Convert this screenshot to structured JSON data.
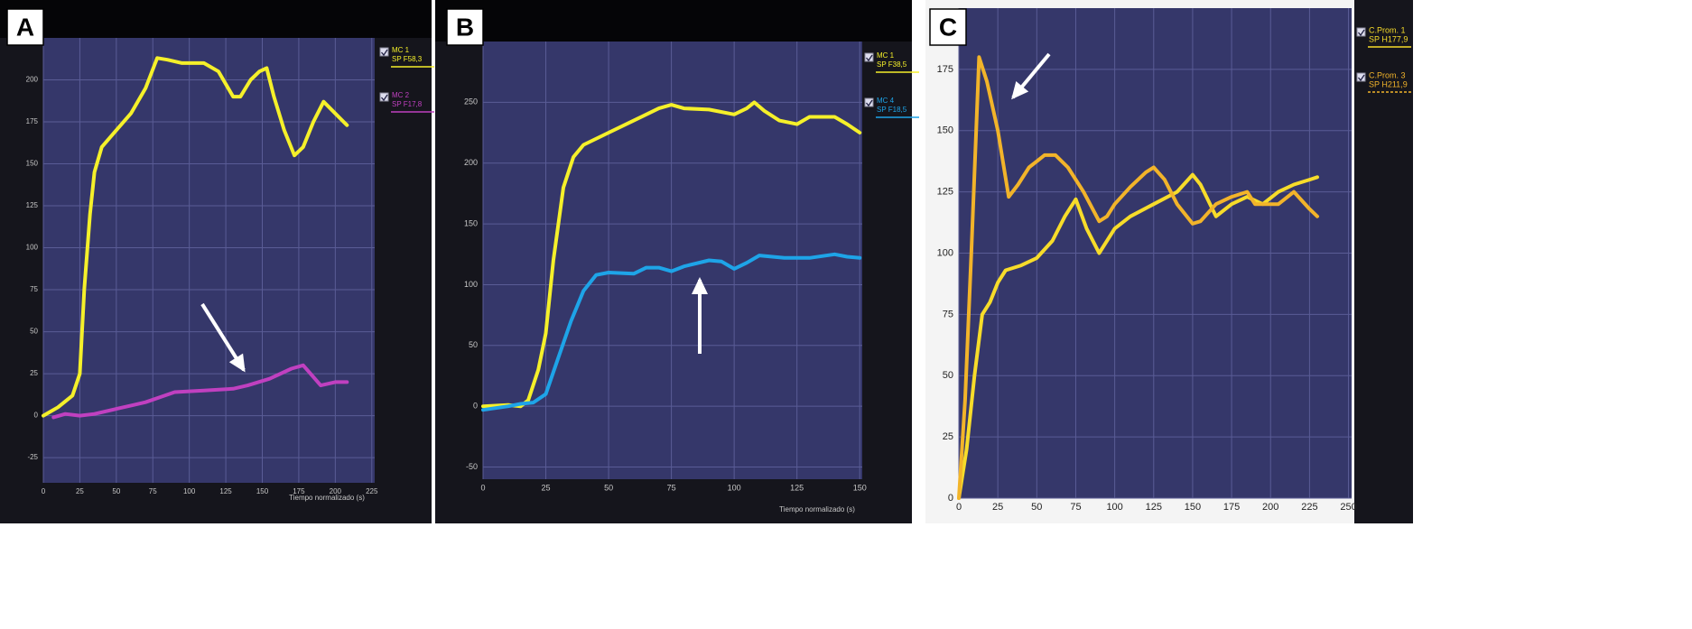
{
  "chart_data": [
    {
      "type": "line",
      "label": "A",
      "x_label": "Tiempo normalizado (s)",
      "xlim": [
        0,
        227
      ],
      "ylim": [
        -40,
        225
      ],
      "xticks": [
        0,
        25,
        50,
        75,
        100,
        125,
        150,
        175,
        200,
        225
      ],
      "yticks": [
        -25,
        0,
        25,
        50,
        75,
        100,
        125,
        150,
        175,
        200
      ],
      "grid": true,
      "series": [
        {
          "name": "MC 1",
          "sp": "SP F58,3",
          "color": "#f5f02a",
          "x": [
            0,
            10,
            20,
            25,
            28,
            32,
            35,
            40,
            50,
            60,
            70,
            78,
            85,
            95,
            110,
            120,
            130,
            135,
            142,
            148,
            153,
            158,
            165,
            172,
            178,
            185,
            192,
            200,
            208
          ],
          "values": [
            0,
            5,
            12,
            25,
            75,
            120,
            145,
            160,
            170,
            180,
            195,
            213,
            212,
            210,
            210,
            205,
            190,
            190,
            200,
            205,
            207,
            190,
            170,
            155,
            160,
            175,
            187,
            180,
            173
          ]
        },
        {
          "name": "MC 2",
          "sp": "SP F17,8",
          "color": "#c040c0",
          "x": [
            7,
            15,
            25,
            35,
            50,
            60,
            70,
            80,
            90,
            110,
            130,
            140,
            155,
            170,
            178,
            183,
            190,
            200,
            208
          ],
          "values": [
            -1,
            1,
            0,
            1,
            4,
            6,
            8,
            11,
            14,
            15,
            16,
            18,
            22,
            28,
            30,
            25,
            18,
            20,
            20
          ]
        }
      ]
    },
    {
      "type": "line",
      "label": "B",
      "x_label": "Tiempo normalizado (s)",
      "xlim": [
        0,
        151
      ],
      "ylim": [
        -60,
        300
      ],
      "xticks": [
        0,
        25,
        50,
        75,
        100,
        125,
        150
      ],
      "yticks": [
        -50,
        0,
        50,
        100,
        150,
        200,
        250
      ],
      "grid": true,
      "series": [
        {
          "name": "MC 1",
          "sp": "SP F38,5",
          "color": "#f5f02a",
          "x": [
            0,
            10,
            15,
            18,
            22,
            25,
            28,
            32,
            36,
            40,
            50,
            60,
            70,
            75,
            80,
            90,
            100,
            105,
            108,
            112,
            118,
            125,
            130,
            140,
            145,
            150
          ],
          "values": [
            0,
            1,
            0,
            5,
            30,
            60,
            120,
            180,
            205,
            215,
            225,
            235,
            245,
            248,
            245,
            244,
            240,
            245,
            250,
            243,
            235,
            232,
            238,
            238,
            232,
            225
          ]
        },
        {
          "name": "MC 4",
          "sp": "SP F18,5",
          "color": "#1ea4e8",
          "x": [
            0,
            10,
            15,
            20,
            25,
            30,
            35,
            40,
            45,
            50,
            60,
            65,
            70,
            75,
            80,
            90,
            95,
            100,
            105,
            110,
            120,
            130,
            140,
            145,
            150
          ],
          "values": [
            -3,
            0,
            2,
            3,
            10,
            40,
            70,
            95,
            108,
            110,
            109,
            114,
            114,
            111,
            115,
            120,
            119,
            113,
            118,
            124,
            122,
            122,
            125,
            123,
            122
          ]
        }
      ]
    },
    {
      "type": "line",
      "label": "C",
      "xlim": [
        0,
        252
      ],
      "ylim": [
        0,
        200
      ],
      "xticks": [
        0,
        25,
        50,
        75,
        100,
        125,
        150,
        175,
        200,
        225,
        250
      ],
      "yticks": [
        0,
        25,
        50,
        75,
        100,
        125,
        150,
        175
      ],
      "grid": true,
      "series": [
        {
          "name": "C.Prom. 1",
          "sp": "SP H177,9",
          "color": "#f7dc2a",
          "legend_style": "solid",
          "x": [
            0,
            5,
            10,
            15,
            20,
            25,
            30,
            40,
            50,
            60,
            68,
            75,
            82,
            90,
            95,
            100,
            110,
            125,
            140,
            150,
            155,
            165,
            175,
            185,
            195,
            205,
            215,
            225,
            230
          ],
          "values": [
            0,
            20,
            50,
            75,
            80,
            88,
            93,
            95,
            98,
            105,
            115,
            122,
            110,
            100,
            105,
            110,
            115,
            120,
            125,
            132,
            128,
            115,
            120,
            123,
            120,
            125,
            128,
            130,
            131
          ]
        },
        {
          "name": "C.Prom. 3",
          "sp": "SP H211,9",
          "color": "#f2b42a",
          "legend_style": "dashed",
          "x": [
            0,
            4,
            8,
            13,
            18,
            25,
            32,
            38,
            45,
            55,
            62,
            70,
            80,
            90,
            95,
            100,
            110,
            120,
            125,
            132,
            140,
            150,
            155,
            165,
            175,
            185,
            190,
            195,
            205,
            215,
            225,
            230
          ],
          "values": [
            0,
            40,
            100,
            180,
            170,
            150,
            123,
            128,
            135,
            140,
            140,
            135,
            125,
            113,
            115,
            120,
            127,
            133,
            135,
            130,
            120,
            112,
            113,
            120,
            123,
            125,
            120,
            120,
            120,
            125,
            118,
            115
          ]
        }
      ]
    }
  ]
}
